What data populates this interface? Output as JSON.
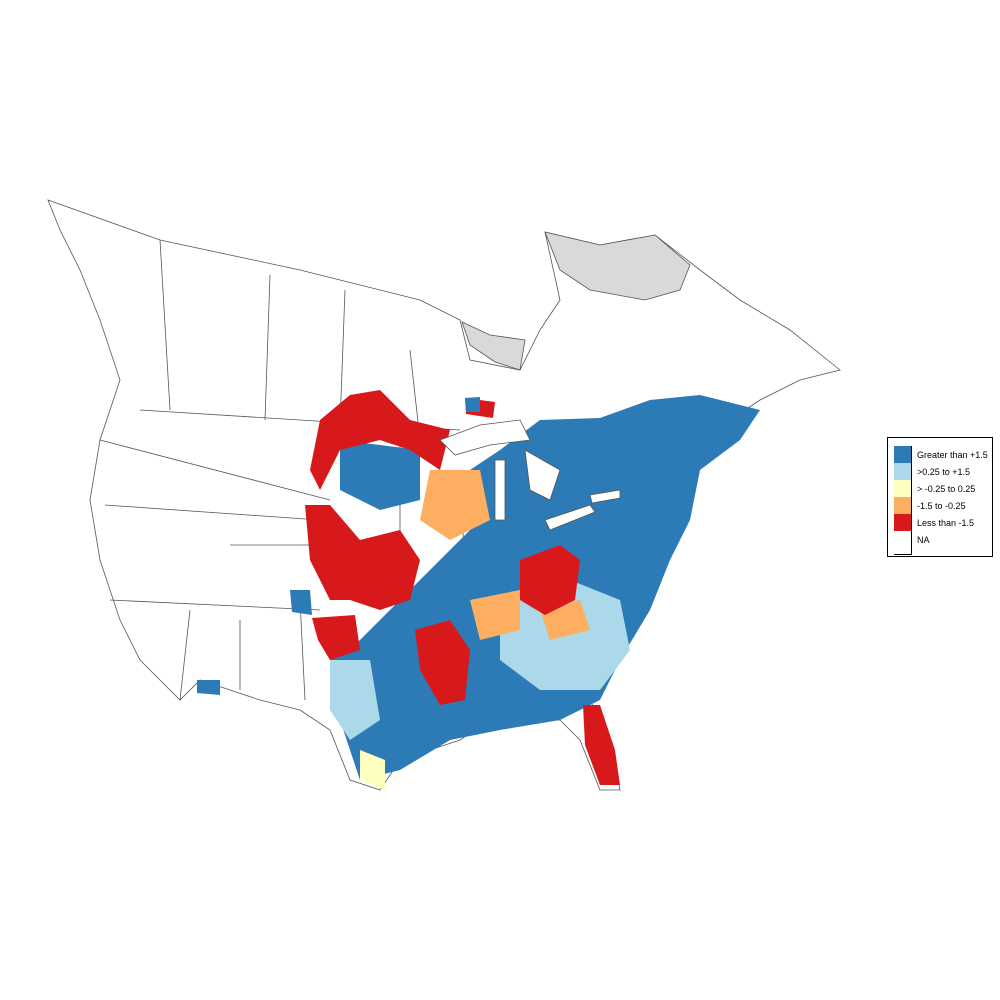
{
  "colors": {
    "greater_than_1_5": "#2c7bb6",
    "0_25_to_1_5": "#abd9e9",
    "neg0_25_to_0_25": "#ffffbf",
    "neg1_5_to_neg0_25": "#fdae61",
    "less_than_neg1_5": "#d7191c",
    "na": "#ffffff",
    "no_data_region": "#d9d9d9",
    "boundary": "#555555"
  },
  "legend": {
    "items": [
      {
        "label": "Greater than +1.5",
        "color": "#2c7bb6"
      },
      {
        "label": ">0.25 to +1.5",
        "color": "#abd9e9"
      },
      {
        "label": "> -0.25 to 0.25",
        "color": "#ffffbf"
      },
      {
        "label": "-1.5 to -0.25",
        "color": "#fdae61"
      },
      {
        "label": "Less than -1.5",
        "color": "#d7191c"
      },
      {
        "label": "NA",
        "color": "#ffffff"
      }
    ]
  }
}
